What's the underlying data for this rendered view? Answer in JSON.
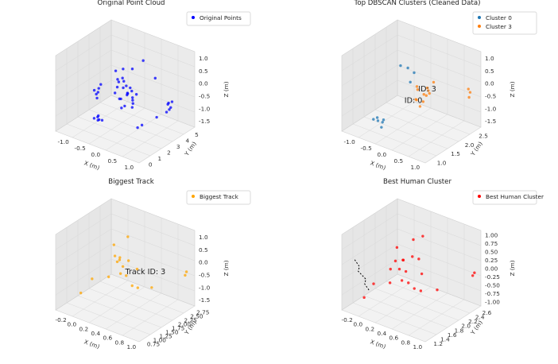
{
  "chart_data": [
    {
      "type": "scatter",
      "subtype": "3d",
      "title": "Original Point Cloud",
      "xlabel": "X (m)",
      "ylabel": "Y (m)",
      "zlabel": "Z (m)",
      "xlim": [
        -1.2,
        1.2
      ],
      "ylim": [
        0,
        5.5
      ],
      "zlim": [
        -1.7,
        1.2
      ],
      "xticks": [
        "-1.0",
        "-0.5",
        "0.0",
        "0.5",
        "1.0"
      ],
      "yticks": [
        "0",
        "1",
        "2",
        "3",
        "4",
        "5"
      ],
      "zticks": [
        "1.0",
        "0.5",
        "0.0",
        "-0.5",
        "-1.0",
        "-1.5"
      ],
      "legend_position": "top-right",
      "grid": true,
      "series": [
        {
          "name": "Original Points",
          "color": "#0000ff",
          "points": [
            [
              -0.2,
              2.8,
              0.0
            ],
            [
              -0.1,
              2.9,
              -0.2
            ],
            [
              0.0,
              3.0,
              -0.4
            ],
            [
              -0.15,
              2.7,
              -0.6
            ],
            [
              0.05,
              2.8,
              -0.3
            ],
            [
              -0.05,
              3.1,
              -0.5
            ],
            [
              0.1,
              2.9,
              -0.1
            ],
            [
              -0.25,
              2.6,
              -0.4
            ],
            [
              0.15,
              3.0,
              -0.7
            ],
            [
              0.0,
              2.7,
              -0.8
            ],
            [
              -0.1,
              3.2,
              -0.2
            ],
            [
              0.2,
              2.8,
              -0.5
            ],
            [
              -0.3,
              3.0,
              -0.3
            ],
            [
              0.05,
              3.3,
              -0.6
            ],
            [
              -0.05,
              2.5,
              -0.5
            ],
            [
              0.1,
              3.1,
              -0.9
            ],
            [
              -0.2,
              3.3,
              -0.1
            ],
            [
              0.25,
              3.0,
              -0.3
            ],
            [
              -0.15,
              2.9,
              -1.0
            ],
            [
              0.0,
              3.4,
              -0.4
            ],
            [
              -0.6,
              2.2,
              -0.3
            ],
            [
              -0.65,
              2.3,
              -0.5
            ],
            [
              -0.7,
              2.1,
              -0.4
            ],
            [
              -0.6,
              2.4,
              -0.2
            ],
            [
              -0.7,
              2.3,
              -0.6
            ],
            [
              -0.65,
              2.2,
              -0.7
            ],
            [
              1.0,
              3.6,
              -0.4
            ],
            [
              1.05,
              3.5,
              -0.6
            ],
            [
              0.95,
              3.7,
              -0.5
            ],
            [
              1.1,
              3.6,
              -0.3
            ],
            [
              1.0,
              3.4,
              -0.7
            ],
            [
              -0.4,
              1.4,
              -1.1
            ],
            [
              -0.3,
              1.5,
              -1.2
            ],
            [
              -0.35,
              1.3,
              -1.0
            ],
            [
              -0.45,
              1.6,
              -1.3
            ],
            [
              -0.3,
              1.2,
              -1.1
            ],
            [
              -0.5,
              1.4,
              -1.2
            ],
            [
              0.0,
              2.0,
              0.4
            ],
            [
              0.1,
              2.2,
              0.8
            ],
            [
              -0.2,
              2.5,
              0.5
            ],
            [
              0.3,
              3.5,
              0.9
            ],
            [
              0.5,
              4.0,
              0.2
            ],
            [
              0.6,
              3.8,
              -1.2
            ],
            [
              0.4,
              2.6,
              -1.4
            ],
            [
              0.8,
              4.5,
              -0.9
            ],
            [
              0.7,
              2.0,
              -1.0
            ],
            [
              0.2,
              1.8,
              0.6
            ],
            [
              -0.1,
              3.8,
              0.3
            ]
          ]
        }
      ]
    },
    {
      "type": "scatter",
      "subtype": "3d",
      "title": "Top DBSCAN Clusters (Cleaned Data)",
      "title_visible": "Top DBSCAN Clusters (Cleaned Data)",
      "xlabel": "X (m)",
      "ylabel": "Y (m)",
      "zlabel": "Z (m)",
      "xlim": [
        -1.2,
        1.2
      ],
      "ylim": [
        0.8,
        2.8
      ],
      "zlim": [
        -1.7,
        1.2
      ],
      "xticks": [
        "-1.0",
        "-0.5",
        "0.0",
        "0.5",
        "1.0"
      ],
      "yticks": [
        "1.0",
        "1.5",
        "2.0",
        "2.5"
      ],
      "zticks": [
        "1.0",
        "0.5",
        "0.0",
        "-0.5",
        "-1.0",
        "-1.5"
      ],
      "legend_position": "top-right",
      "grid": true,
      "annotations": [
        "ID: 3",
        "ID: 0"
      ],
      "series": [
        {
          "name": "Cluster 0",
          "color": "#1f77b4",
          "points": [
            [
              -0.4,
              1.1,
              -1.1
            ],
            [
              -0.35,
              1.2,
              -1.2
            ],
            [
              -0.45,
              1.0,
              -1.0
            ],
            [
              -0.3,
              1.1,
              -1.3
            ],
            [
              -0.5,
              1.2,
              -1.1
            ],
            [
              -0.4,
              1.3,
              -1.2
            ],
            [
              -0.1,
              1.8,
              0.6
            ],
            [
              0.0,
              1.9,
              0.4
            ],
            [
              -0.15,
              1.6,
              0.8
            ],
            [
              0.05,
              1.7,
              0.2
            ]
          ]
        },
        {
          "name": "Cluster 3",
          "color": "#ff7f0e",
          "points": [
            [
              0.1,
              1.9,
              -0.2
            ],
            [
              0.2,
              2.0,
              -0.4
            ],
            [
              0.15,
              1.8,
              -0.5
            ],
            [
              0.25,
              2.1,
              -0.3
            ],
            [
              0.05,
              1.9,
              -0.6
            ],
            [
              0.3,
              2.0,
              -0.1
            ],
            [
              0.2,
              2.2,
              -0.5
            ],
            [
              0.1,
              2.1,
              -0.8
            ],
            [
              0.35,
              1.9,
              -0.3
            ],
            [
              0.0,
              2.0,
              -0.2
            ],
            [
              0.4,
              2.1,
              0.1
            ],
            [
              0.25,
              1.8,
              -0.7
            ],
            [
              1.05,
              2.6,
              -0.3
            ],
            [
              1.1,
              2.5,
              -0.4
            ],
            [
              1.0,
              2.6,
              -0.2
            ]
          ]
        }
      ]
    },
    {
      "type": "scatter",
      "subtype": "3d",
      "title": "Biggest Track",
      "xlabel": "X (m)",
      "ylabel": "Y (m)",
      "zlabel": "Z (m)",
      "xlim": [
        -0.3,
        1.1
      ],
      "ylim": [
        0.7,
        2.8
      ],
      "zlim": [
        -1.7,
        1.2
      ],
      "xticks": [
        "-0.2",
        "0.0",
        "0.2",
        "0.4",
        "0.6",
        "0.8",
        "1.0"
      ],
      "yticks": [
        "0.75",
        "1.00",
        "1.25",
        "1.50",
        "1.75",
        "2.00",
        "2.25",
        "2.50",
        "2.75"
      ],
      "zticks": [
        "1.0",
        "0.5",
        "0.0",
        "-0.5",
        "-1.0",
        "-1.5"
      ],
      "legend_position": "top-right",
      "grid": true,
      "annotations": [
        "Track ID: 3"
      ],
      "series": [
        {
          "name": "Biggest Track",
          "color": "#ffa500",
          "points": [
            [
              0.2,
              1.9,
              -0.2
            ],
            [
              0.25,
              2.0,
              -0.4
            ],
            [
              0.3,
              1.8,
              -0.5
            ],
            [
              0.15,
              2.1,
              -0.3
            ],
            [
              0.35,
              1.9,
              -0.6
            ],
            [
              0.2,
              2.0,
              -0.1
            ],
            [
              0.4,
              2.2,
              -0.5
            ],
            [
              0.1,
              1.8,
              -0.8
            ],
            [
              0.3,
              2.1,
              -0.2
            ],
            [
              0.25,
              1.7,
              0.2
            ],
            [
              0.5,
              2.0,
              -1.0
            ],
            [
              0.45,
              1.9,
              -0.9
            ],
            [
              -0.1,
              1.2,
              -1.2
            ],
            [
              0.0,
              1.4,
              -0.7
            ],
            [
              0.6,
              2.3,
              -1.1
            ],
            [
              1.05,
              2.6,
              -0.3
            ],
            [
              1.05,
              2.55,
              -0.4
            ],
            [
              0.2,
              2.3,
              0.5
            ],
            [
              0.1,
              2.0,
              0.3
            ]
          ]
        }
      ]
    },
    {
      "type": "scatter",
      "subtype": "3d",
      "title": "Best Human Cluster",
      "xlabel": "X (m)",
      "ylabel": "Y (m)",
      "zlabel": "Z (m)",
      "xlim": [
        -0.3,
        1.1
      ],
      "ylim": [
        1.1,
        2.7
      ],
      "zlim": [
        -1.1,
        1.1
      ],
      "xticks": [
        "-0.2",
        "0.0",
        "0.2",
        "0.4",
        "0.6",
        "0.8",
        "1.0"
      ],
      "yticks": [
        "1.2",
        "1.4",
        "1.6",
        "1.8",
        "2.0",
        "2.2",
        "2.4",
        "2.6"
      ],
      "zticks": [
        "1.00",
        "0.75",
        "0.50",
        "0.25",
        "0.00",
        "-0.25",
        "-0.50",
        "-0.75",
        "-1.00"
      ],
      "legend_position": "top-right",
      "grid": true,
      "series": [
        {
          "name": "Best Human Cluster",
          "color": "#ff0000",
          "points": [
            [
              0.2,
              1.9,
              -0.1
            ],
            [
              0.25,
              2.0,
              -0.2
            ],
            [
              0.3,
              1.8,
              -0.3
            ],
            [
              0.15,
              2.1,
              0.0
            ],
            [
              0.35,
              1.9,
              -0.4
            ],
            [
              0.2,
              2.0,
              0.1
            ],
            [
              0.4,
              2.2,
              -0.3
            ],
            [
              0.1,
              1.8,
              -0.5
            ],
            [
              0.3,
              2.1,
              0.2
            ],
            [
              0.25,
              1.7,
              0.3
            ],
            [
              0.5,
              2.0,
              -0.6
            ],
            [
              0.45,
              1.9,
              -0.5
            ],
            [
              -0.1,
              1.4,
              -0.8
            ],
            [
              0.0,
              1.5,
              -0.4
            ],
            [
              0.6,
              2.3,
              -0.7
            ],
            [
              1.05,
              2.6,
              -0.1
            ],
            [
              1.05,
              2.55,
              -0.15
            ],
            [
              0.2,
              2.3,
              0.5
            ],
            [
              0.1,
              2.0,
              0.4
            ],
            [
              0.35,
              2.2,
              0.1
            ],
            [
              0.05,
              1.9,
              -0.2
            ],
            [
              0.3,
              2.4,
              0.6
            ]
          ]
        },
        {
          "name": "trajectory",
          "color": "#000000",
          "style": "dashed",
          "points": [
            [
              -0.2,
              1.3,
              0.3
            ],
            [
              -0.15,
              1.35,
              0.1
            ],
            [
              -0.2,
              1.4,
              -0.1
            ],
            [
              -0.1,
              1.45,
              -0.3
            ],
            [
              -0.15,
              1.5,
              -0.5
            ],
            [
              -0.1,
              1.55,
              -0.7
            ]
          ]
        }
      ]
    }
  ]
}
